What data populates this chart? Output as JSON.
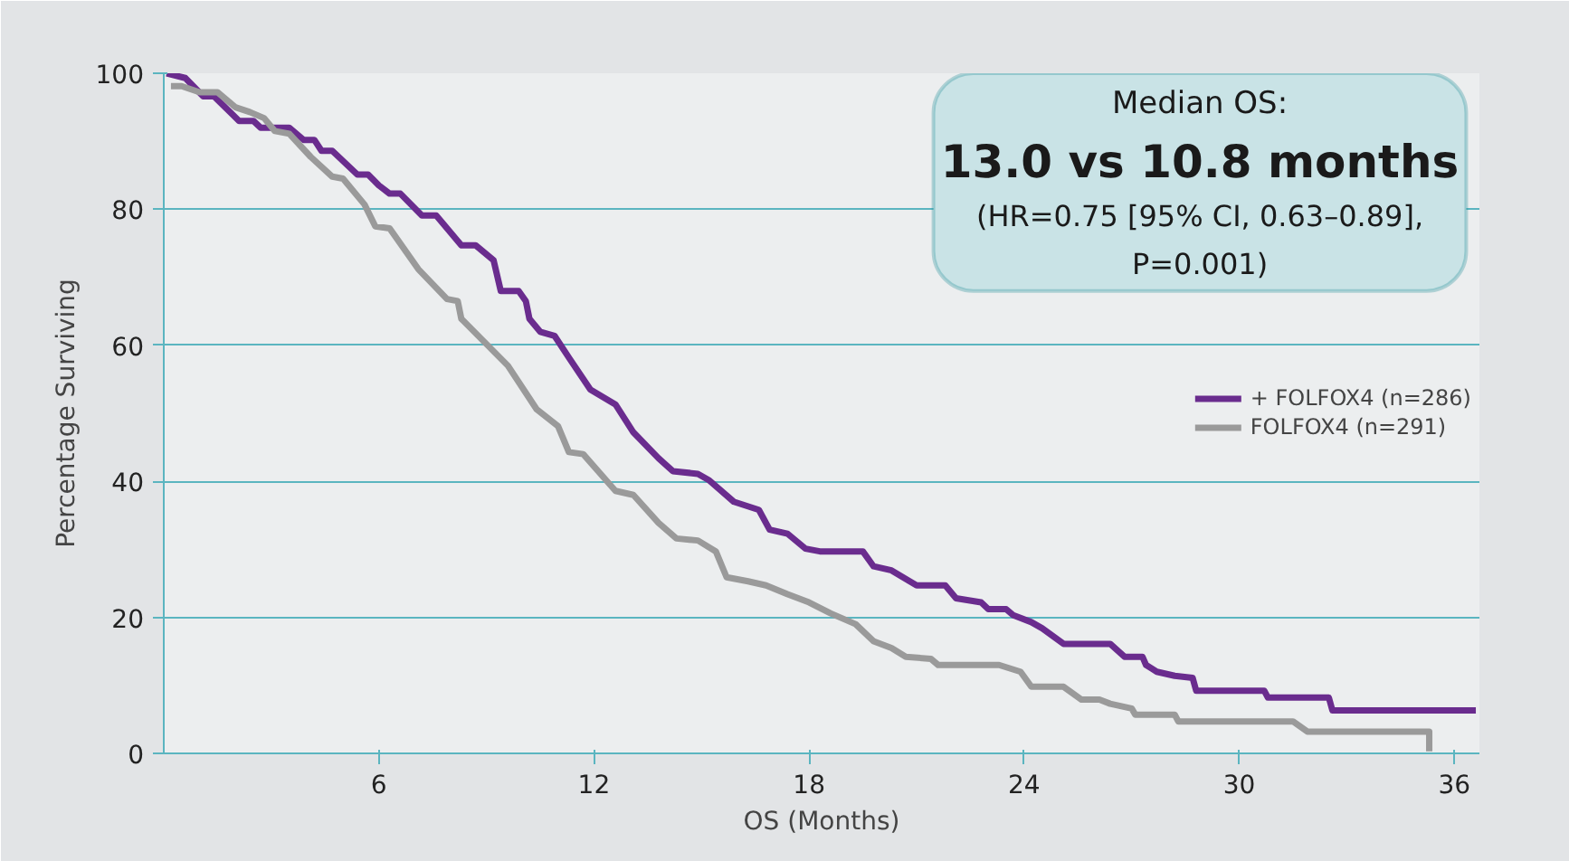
{
  "chart_data": {
    "type": "line",
    "xlabel": "OS (Months)",
    "ylabel": "Percentage Surviving",
    "xlim": [
      0,
      36.7
    ],
    "ylim": [
      0,
      100
    ],
    "xticks": [
      6,
      12,
      18,
      24,
      30,
      36
    ],
    "yticks": [
      0,
      20,
      40,
      60,
      80,
      100
    ],
    "grid": "y",
    "legend": "center right",
    "marker": "none",
    "line_style": "solid",
    "annotations": [
      "Median OS:",
      "13.0 vs 10.8 months",
      "(HR=0.75 [95% CI, 0.63–0.89],",
      "P=0.001)"
    ],
    "series": [
      {
        "name": "+ FOLFOX4 (n=286)",
        "color": "#6a2c8e",
        "x": [
          0.08,
          0.6,
          1.1,
          1.4,
          2.1,
          2.5,
          2.7,
          3.5,
          3.9,
          4.2,
          4.4,
          4.7,
          5.4,
          5.7,
          6.0,
          6.3,
          6.6,
          7.2,
          7.6,
          8.3,
          8.7,
          9.2,
          9.4,
          9.9,
          10.1,
          10.2,
          10.5,
          10.9,
          11.3,
          11.9,
          12.6,
          13.1,
          13.8,
          14.2,
          14.9,
          15.2,
          15.9,
          16.6,
          16.9,
          17.4,
          17.9,
          18.3,
          19.5,
          19.8,
          20.3,
          21.0,
          21.8,
          22.1,
          22.8,
          23.0,
          23.5,
          23.7,
          24.2,
          24.5,
          25.1,
          26.4,
          26.8,
          27.3,
          27.4,
          27.7,
          28.2,
          28.7,
          28.8,
          30.7,
          30.8,
          32.5,
          32.6,
          36.6
        ],
        "values": [
          100,
          99.3,
          96.6,
          96.6,
          93,
          93,
          92,
          92,
          90.2,
          90.2,
          88.6,
          88.6,
          85.1,
          85.1,
          83.5,
          82.3,
          82.3,
          79.1,
          79.1,
          74.7,
          74.7,
          72.5,
          68,
          68,
          66.5,
          63.9,
          62,
          61.4,
          58.2,
          53.5,
          51.3,
          47.2,
          43.4,
          41.5,
          41.1,
          40.2,
          37,
          35.8,
          32.9,
          32.3,
          30.1,
          29.7,
          29.7,
          27.5,
          26.9,
          24.7,
          24.7,
          22.8,
          22.2,
          21.2,
          21.2,
          20.3,
          19.3,
          18.4,
          16.1,
          16.1,
          14.2,
          14.2,
          13,
          12,
          11.4,
          11.1,
          9.2,
          9.2,
          8.2,
          8.2,
          6.3,
          6.3
        ]
      },
      {
        "name": "FOLFOX4 (n=291)",
        "color": "#9a9a9a",
        "x": [
          0.2,
          0.5,
          1.0,
          1.5,
          2.0,
          2.4,
          2.8,
          3.1,
          3.5,
          4.1,
          4.7,
          5.0,
          5.6,
          5.9,
          6.3,
          7.1,
          7.9,
          8.2,
          8.3,
          9.6,
          10.4,
          11.0,
          11.3,
          11.7,
          12.6,
          13.1,
          13.8,
          14.3,
          14.9,
          15.4,
          15.7,
          16.3,
          16.8,
          17.4,
          18.0,
          18.6,
          19.3,
          19.8,
          20.3,
          20.7,
          21.4,
          21.6,
          23.3,
          23.9,
          24.2,
          25.1,
          25.6,
          26.1,
          26.4,
          27.0,
          27.1,
          28.2,
          28.3,
          31.5,
          31.9,
          35.3,
          35.3
        ],
        "values": [
          98.1,
          98.1,
          97.2,
          97.2,
          95,
          94.3,
          93.4,
          91.5,
          91.1,
          87.7,
          84.8,
          84.5,
          80.7,
          77.5,
          77.2,
          71.2,
          66.8,
          66.5,
          63.9,
          57,
          50.6,
          48.1,
          44.3,
          44,
          38.6,
          38,
          33.9,
          31.6,
          31.3,
          29.7,
          25.9,
          25.3,
          24.7,
          23.4,
          22.2,
          20.6,
          19,
          16.5,
          15.5,
          14.2,
          13.9,
          13,
          13,
          12,
          9.8,
          9.8,
          7.9,
          7.9,
          7.3,
          6.6,
          5.7,
          5.7,
          4.7,
          4.7,
          3.2,
          3.2,
          0.3
        ]
      }
    ]
  }
}
